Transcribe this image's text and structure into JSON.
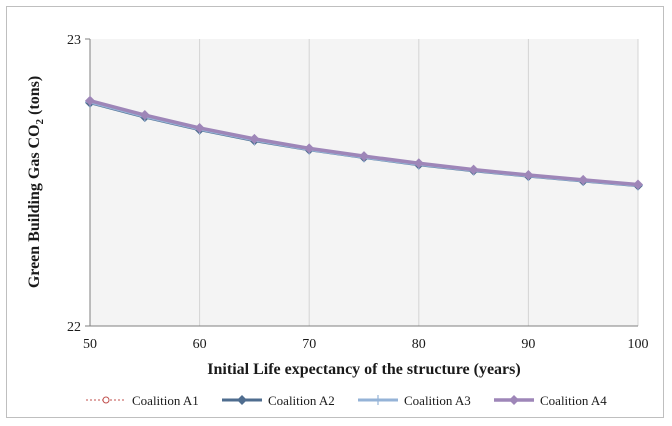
{
  "chart_data": {
    "type": "line",
    "xlabel": "Initial Life expectancy of the structure (years)",
    "ylabel_main": "Green Building Gas CO",
    "ylabel_sub": "2",
    "ylabel_unit": " (tons)",
    "xlim": [
      50,
      100
    ],
    "ylim": [
      22,
      23
    ],
    "x_ticks": [
      "50",
      "60",
      "70",
      "80",
      "90",
      "100"
    ],
    "y_ticks": [
      "22",
      "23"
    ],
    "grid": "vertical",
    "legend_position": "bottom",
    "x": [
      50,
      55,
      60,
      65,
      70,
      75,
      80,
      85,
      90,
      95,
      100
    ],
    "series": [
      {
        "name": "Coalition A1",
        "color": "#c0504d",
        "marker": "circle",
        "values": [
          22.783,
          22.733,
          22.688,
          22.65,
          22.617,
          22.59,
          22.565,
          22.543,
          22.524,
          22.507,
          22.491
        ]
      },
      {
        "name": "Coalition A2",
        "color": "#4f6d8f",
        "marker": "diamond",
        "values": [
          22.778,
          22.728,
          22.684,
          22.646,
          22.614,
          22.587,
          22.562,
          22.541,
          22.522,
          22.505,
          22.489
        ]
      },
      {
        "name": "Coalition A3",
        "color": "#95b3d7",
        "marker": "plus",
        "values": [
          22.78,
          22.73,
          22.686,
          22.648,
          22.615,
          22.588,
          22.563,
          22.542,
          22.523,
          22.506,
          22.49
        ]
      },
      {
        "name": "Coalition A4",
        "color": "#9e86b8",
        "marker": "diamond",
        "values": [
          22.785,
          22.735,
          22.69,
          22.652,
          22.619,
          22.592,
          22.567,
          22.545,
          22.526,
          22.509,
          22.493
        ]
      }
    ]
  }
}
